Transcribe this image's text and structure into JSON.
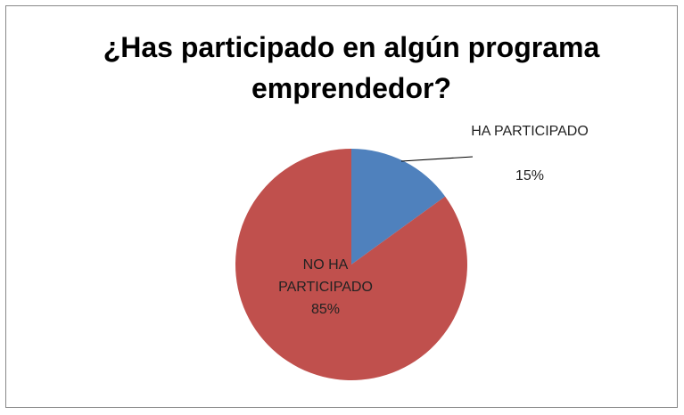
{
  "chart_data": {
    "type": "pie",
    "title": "¿Has participado en algún programa emprendedor?",
    "categories": [
      "HA PARTICIPADO",
      "NO HA PARTICIPADO"
    ],
    "values": [
      15,
      85
    ],
    "value_labels": [
      "15%",
      "85%"
    ],
    "colors": [
      "#4f81bd",
      "#c0504d"
    ]
  }
}
